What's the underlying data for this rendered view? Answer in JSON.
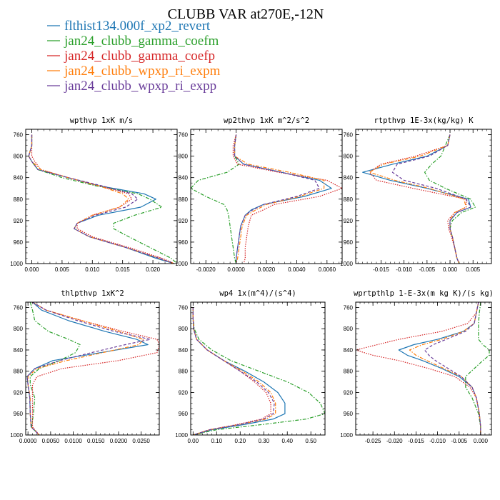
{
  "figure": {
    "title": "CLUBB VAR at270E,-12N",
    "legend": [
      {
        "name": "flthist134.000f_xp2_revert",
        "color": "#1f77b4",
        "dash": "solid"
      },
      {
        "name": "jan24_clubb_gamma_coefm",
        "color": "#2ca02c",
        "dash": "dashdot"
      },
      {
        "name": "jan24_clubb_gamma_coefp",
        "color": "#d62728",
        "dash": "dotted"
      },
      {
        "name": "jan24_clubb_wpxp_ri_expm",
        "color": "#ff7f0e",
        "dash": "dashdot"
      },
      {
        "name": "jan24_clubb_wpxp_ri_expp",
        "color": "#6a3d9a",
        "dash": "dashed"
      }
    ]
  },
  "chart_data": [
    {
      "type": "line",
      "title": "wpthvp  1xK m/s",
      "xlim": [
        -0.001,
        0.024
      ],
      "ylim": [
        1000,
        750
      ],
      "xticks": [
        0.0,
        0.005,
        0.01,
        0.015,
        0.02
      ],
      "xticklabels": [
        "0.000",
        "0.005",
        "0.010",
        "0.015",
        "0.020"
      ],
      "yticks": [
        760,
        800,
        840,
        880,
        920,
        960,
        1000
      ],
      "y": [
        760,
        780,
        800,
        810,
        825,
        840,
        855,
        870,
        880,
        895,
        910,
        925,
        935,
        950,
        970,
        990,
        1000
      ],
      "series": [
        {
          "values": [
            0.0,
            0.0,
            -0.0005,
            0.0,
            0.001,
            0.006,
            0.011,
            0.0185,
            0.0205,
            0.018,
            0.011,
            0.0075,
            0.007,
            0.0095,
            0.0155,
            0.0205,
            0.0235
          ]
        },
        {
          "values": [
            0.0,
            0.0,
            -0.0005,
            0.0,
            0.001,
            0.005,
            0.0105,
            0.0175,
            0.0195,
            0.0215,
            0.017,
            0.0135,
            0.0135,
            0.016,
            0.0195,
            0.023,
            0.024
          ]
        },
        {
          "values": [
            0.0,
            0.0,
            0.0,
            0.0005,
            0.0015,
            0.006,
            0.011,
            0.016,
            0.0165,
            0.0145,
            0.01,
            0.0075,
            0.0075,
            0.01,
            0.016,
            0.0215,
            0.0235
          ]
        },
        {
          "values": [
            0.0,
            0.0,
            -0.0005,
            0.0,
            0.0015,
            0.006,
            0.011,
            0.015,
            0.016,
            0.0145,
            0.01,
            0.0075,
            0.007,
            0.0095,
            0.0155,
            0.021,
            0.0235
          ]
        },
        {
          "values": [
            0.0,
            0.0,
            -0.0005,
            0.0,
            0.001,
            0.006,
            0.0115,
            0.0165,
            0.0175,
            0.0155,
            0.0105,
            0.0075,
            0.007,
            0.0095,
            0.0155,
            0.021,
            0.0235
          ]
        }
      ]
    },
    {
      "type": "line",
      "title": "wp2thvp  1xK m^2/s^2",
      "xlim": [
        -0.003,
        0.007
      ],
      "ylim": [
        1000,
        750
      ],
      "xticks": [
        -0.002,
        0.0,
        0.002,
        0.004,
        0.006
      ],
      "xticklabels": [
        "-0.0020",
        "0.0000",
        "0.0020",
        "0.0040",
        "0.0060"
      ],
      "yticks": [
        760,
        800,
        840,
        880,
        920,
        960,
        1000
      ],
      "y": [
        760,
        780,
        800,
        815,
        830,
        845,
        860,
        875,
        890,
        900,
        910,
        930,
        950,
        970,
        990,
        1000
      ],
      "series": [
        {
          "values": [
            0.0,
            -0.0001,
            -0.0001,
            0.0005,
            0.003,
            0.0055,
            0.0063,
            0.0045,
            0.0018,
            0.001,
            0.0006,
            0.0003,
            0.0002,
            0.0001,
            0.0,
            0.0
          ]
        },
        {
          "values": [
            0.0,
            -0.0001,
            -0.0001,
            0.0002,
            -0.0006,
            -0.0025,
            -0.003,
            -0.002,
            -0.0008,
            -0.0006,
            -0.0005,
            -0.0004,
            -0.0003,
            -0.0002,
            -0.0001,
            0.0
          ]
        },
        {
          "values": [
            0.0,
            -0.0002,
            -0.0002,
            0.0001,
            0.0028,
            0.006,
            0.007,
            0.0055,
            0.0025,
            0.0018,
            0.001,
            0.0008,
            0.0007,
            0.0006,
            0.0006,
            0.0005
          ]
        },
        {
          "values": [
            0.0,
            -0.0001,
            -0.0001,
            0.0008,
            0.0035,
            0.0058,
            0.0058,
            0.0042,
            0.002,
            0.0013,
            0.0007,
            0.0004,
            0.0003,
            0.0002,
            0.0001,
            0.0
          ]
        },
        {
          "values": [
            0.0,
            -0.0001,
            -0.0001,
            0.0005,
            0.003,
            0.0052,
            0.0055,
            0.004,
            0.0018,
            0.0011,
            0.0006,
            0.0003,
            0.0002,
            0.0001,
            0.0,
            0.0
          ]
        }
      ]
    },
    {
      "type": "line",
      "title": "rtpthvp  1E-3x(kg/kg) K",
      "xlim": [
        -0.0205,
        0.009
      ],
      "ylim": [
        1000,
        750
      ],
      "xticks": [
        -0.015,
        -0.01,
        -0.005,
        0.0,
        0.005
      ],
      "xticklabels": [
        "-0.015",
        "-0.010",
        "-0.005",
        "0.000",
        "0.005"
      ],
      "yticks": [
        760,
        800,
        840,
        880,
        920,
        960,
        1000
      ],
      "y": [
        760,
        780,
        800,
        815,
        830,
        845,
        860,
        880,
        895,
        905,
        920,
        935,
        950,
        970,
        990,
        1000
      ],
      "series": [
        {
          "values": [
            0.0,
            -0.0005,
            -0.005,
            -0.0125,
            -0.019,
            -0.013,
            -0.005,
            0.004,
            0.0045,
            0.0015,
            0.0,
            0.0,
            0.0005,
            0.001,
            0.0015,
            0.002
          ]
        },
        {
          "values": [
            0.0,
            -0.001,
            -0.002,
            -0.004,
            -0.0055,
            -0.0045,
            -0.001,
            0.0045,
            0.0055,
            0.0025,
            0.0005,
            0.0,
            0.0005,
            0.001,
            0.0015,
            0.002
          ]
        },
        {
          "values": [
            0.0,
            -0.0005,
            -0.0075,
            -0.015,
            -0.0175,
            -0.016,
            -0.008,
            0.0035,
            0.0035,
            0.001,
            -0.0005,
            -0.0003,
            0.0003,
            0.001,
            0.0015,
            0.002
          ]
        },
        {
          "values": [
            0.0,
            -0.0005,
            -0.0065,
            -0.0145,
            -0.0175,
            -0.012,
            -0.0045,
            0.003,
            0.0035,
            0.001,
            0.0,
            0.0,
            0.0005,
            0.001,
            0.0015,
            0.002
          ]
        },
        {
          "values": [
            0.0,
            -0.0005,
            -0.0045,
            -0.0115,
            -0.0125,
            -0.01,
            -0.003,
            0.0035,
            0.0045,
            0.0015,
            0.0,
            0.0,
            0.0005,
            0.001,
            0.0015,
            0.002
          ]
        }
      ]
    },
    {
      "type": "line",
      "title": "thlpthvp  1xK^2",
      "xlim": [
        -0.0005,
        0.029
      ],
      "ylim": [
        1000,
        750
      ],
      "xticks": [
        0.0,
        0.005,
        0.01,
        0.015,
        0.02,
        0.025
      ],
      "xticklabels": [
        "0.0000",
        "0.0050",
        "0.0100",
        "0.0150",
        "0.0200",
        "0.0250"
      ],
      "yticks": [
        760,
        800,
        840,
        880,
        920,
        960,
        1000
      ],
      "y": [
        750,
        765,
        785,
        805,
        820,
        830,
        845,
        860,
        875,
        890,
        905,
        930,
        960,
        985,
        1000
      ],
      "series": [
        {
          "values": [
            0.001,
            0.003,
            0.009,
            0.017,
            0.024,
            0.0265,
            0.016,
            0.0055,
            0.0015,
            -0.0002,
            0.0,
            0.0004,
            0.0005,
            0.0007,
            0.0025
          ]
        },
        {
          "values": [
            0.0005,
            0.001,
            0.0015,
            0.0045,
            0.009,
            0.0115,
            0.0105,
            0.007,
            0.0025,
            0.0005,
            0.0005,
            0.0015,
            0.0012,
            0.0008,
            0.0025
          ]
        },
        {
          "values": [
            0.001,
            0.004,
            0.012,
            0.021,
            0.0285,
            0.029,
            0.0285,
            0.02,
            0.0075,
            0.002,
            0.001,
            0.001,
            0.001,
            0.001,
            0.0025
          ]
        },
        {
          "values": [
            0.001,
            0.004,
            0.012,
            0.02,
            0.0255,
            0.0245,
            0.0165,
            0.0085,
            0.002,
            0.0,
            0.0,
            0.0005,
            0.0005,
            0.0007,
            0.0025
          ]
        },
        {
          "values": [
            0.001,
            0.004,
            0.011,
            0.019,
            0.027,
            0.0215,
            0.014,
            0.007,
            0.0015,
            -0.0002,
            0.0,
            0.0004,
            0.0005,
            0.0007,
            0.0025
          ]
        }
      ]
    },
    {
      "type": "line",
      "title": "wp4  1x(m^4)/(s^4)",
      "xlim": [
        -0.01,
        0.56
      ],
      "ylim": [
        1000,
        750
      ],
      "xticks": [
        0.0,
        0.1,
        0.2,
        0.3,
        0.4,
        0.5
      ],
      "xticklabels": [
        "0.00",
        "0.10",
        "0.20",
        "0.30",
        "0.40",
        "0.50"
      ],
      "yticks": [
        760,
        800,
        840,
        880,
        920,
        960,
        1000
      ],
      "y": [
        760,
        780,
        800,
        820,
        840,
        860,
        880,
        900,
        920,
        940,
        960,
        970,
        980,
        990,
        1000
      ],
      "series": [
        {
          "values": [
            0.0,
            0.0,
            0.002,
            0.015,
            0.06,
            0.13,
            0.22,
            0.3,
            0.36,
            0.39,
            0.39,
            0.34,
            0.22,
            0.08,
            0.0
          ]
        },
        {
          "values": [
            0.0,
            0.0,
            0.005,
            0.025,
            0.08,
            0.16,
            0.28,
            0.4,
            0.49,
            0.54,
            0.56,
            0.48,
            0.3,
            0.1,
            0.0
          ]
        },
        {
          "values": [
            0.0,
            0.0,
            0.002,
            0.015,
            0.06,
            0.13,
            0.2,
            0.26,
            0.31,
            0.33,
            0.33,
            0.29,
            0.19,
            0.07,
            0.0
          ]
        },
        {
          "values": [
            0.0,
            0.0,
            0.002,
            0.015,
            0.06,
            0.13,
            0.21,
            0.28,
            0.33,
            0.35,
            0.35,
            0.31,
            0.2,
            0.07,
            0.0
          ]
        },
        {
          "values": [
            0.0,
            0.0,
            0.002,
            0.015,
            0.06,
            0.13,
            0.2,
            0.27,
            0.32,
            0.345,
            0.34,
            0.3,
            0.2,
            0.07,
            0.0
          ]
        }
      ]
    },
    {
      "type": "line",
      "title": "wprtpthlp  1-E-3x(m kg K)/(s kg)",
      "xlim": [
        -0.029,
        0.0025
      ],
      "ylim": [
        1000,
        750
      ],
      "xticks": [
        -0.025,
        -0.02,
        -0.015,
        -0.01,
        -0.005,
        0.0
      ],
      "xticklabels": [
        "-0.025",
        "-0.020",
        "-0.015",
        "-0.010",
        "-0.005",
        "0.000"
      ],
      "yticks": [
        760,
        800,
        840,
        880,
        920,
        960,
        1000
      ],
      "y": [
        750,
        770,
        790,
        805,
        820,
        830,
        840,
        850,
        860,
        875,
        890,
        910,
        930,
        960,
        985,
        1000
      ],
      "series": [
        {
          "values": [
            -0.0005,
            -0.001,
            -0.0015,
            -0.004,
            -0.01,
            -0.0155,
            -0.019,
            -0.017,
            -0.0135,
            -0.009,
            -0.005,
            -0.002,
            -0.001,
            -0.0003,
            0.0,
            0.0
          ]
        },
        {
          "values": [
            0.0,
            -0.0003,
            -0.0005,
            -0.0005,
            -0.0005,
            0.0005,
            0.002,
            0.002,
            0.0005,
            -0.0015,
            -0.0035,
            -0.0035,
            -0.002,
            -0.0005,
            0.0,
            0.0
          ]
        },
        {
          "values": [
            -0.0005,
            -0.001,
            -0.003,
            -0.009,
            -0.019,
            -0.024,
            -0.029,
            -0.025,
            -0.019,
            -0.012,
            -0.006,
            -0.0025,
            -0.001,
            -0.0003,
            0.0,
            0.0
          ]
        },
        {
          "values": [
            -0.0005,
            -0.001,
            -0.0015,
            -0.004,
            -0.009,
            -0.0135,
            -0.0165,
            -0.015,
            -0.0125,
            -0.0085,
            -0.0045,
            -0.002,
            -0.001,
            -0.0003,
            0.0,
            0.0
          ]
        },
        {
          "values": [
            -0.0005,
            -0.001,
            -0.0015,
            -0.0035,
            -0.008,
            -0.011,
            -0.013,
            -0.012,
            -0.0105,
            -0.0075,
            -0.0045,
            -0.002,
            -0.001,
            -0.0003,
            0.0,
            0.0
          ]
        }
      ]
    }
  ]
}
